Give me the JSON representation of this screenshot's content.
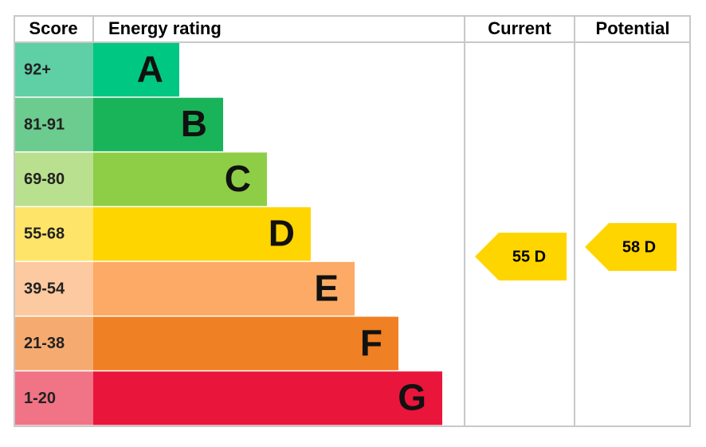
{
  "header": {
    "score": "Score",
    "rating": "Energy rating",
    "current": "Current",
    "potential": "Potential"
  },
  "bands": [
    {
      "score": "92+",
      "letter": "A",
      "color": "#00c781",
      "score_color": "#5fcfa6"
    },
    {
      "score": "81-91",
      "letter": "B",
      "color": "#19b459",
      "score_color": "#6ccb8e"
    },
    {
      "score": "69-80",
      "letter": "C",
      "color": "#8dce46",
      "score_color": "#b9e08e"
    },
    {
      "score": "55-68",
      "letter": "D",
      "color": "#ffd500",
      "score_color": "#ffe46a"
    },
    {
      "score": "39-54",
      "letter": "E",
      "color": "#fcaa65",
      "score_color": "#fdc9a0"
    },
    {
      "score": "21-38",
      "letter": "F",
      "color": "#ef8023",
      "score_color": "#f5ab6f"
    },
    {
      "score": "1-20",
      "letter": "G",
      "color": "#e9153b",
      "score_color": "#f07486"
    }
  ],
  "current": {
    "label": "55 D",
    "color": "#ffd500"
  },
  "potential": {
    "label": "58 D",
    "color": "#ffd500"
  }
}
